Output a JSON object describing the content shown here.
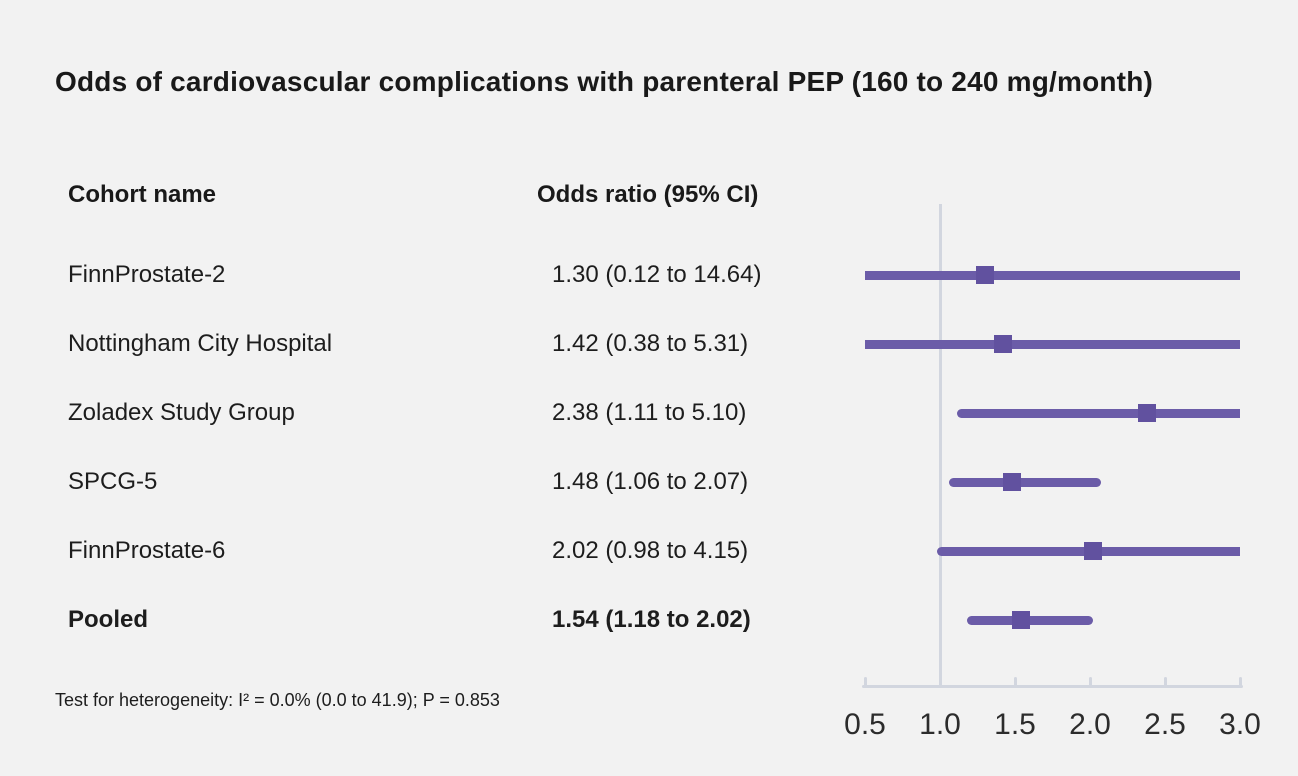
{
  "title": "Odds of cardiovascular complications with parenteral PEP (160 to 240 mg/month)",
  "columns": {
    "cohort_header": "Cohort name",
    "odds_header": "Odds ratio (95% CI)"
  },
  "footnote": "Test for heterogeneity: I² = 0.0% (0.0 to 41.9); P = 0.853",
  "colors": {
    "background": "#f2f2f2",
    "text": "#191919",
    "ci_line": "#6b5ca8",
    "marker": "#61519f",
    "axis": "#d2d6df",
    "axis_label": "#2c2c2c"
  },
  "chart_data": {
    "type": "forest",
    "title": "Odds of cardiovascular complications with parenteral PEP (160 to 240 mg/month)",
    "xlabel": "",
    "ylabel": "",
    "xlim": [
      0.5,
      3.0
    ],
    "reference_line": 1.0,
    "x_ticks": [
      0.5,
      1.0,
      1.5,
      2.0,
      2.5,
      3.0
    ],
    "x_tick_labels": [
      "0.5",
      "1.0",
      "1.5",
      "2.0",
      "2.5",
      "3.0"
    ],
    "grid": false,
    "legend": false,
    "rows": [
      {
        "label": "FinnProstate-2",
        "or_text": "1.30 (0.12 to 14.64)",
        "or": 1.3,
        "ci_low": 0.12,
        "ci_high": 14.64,
        "bold": false
      },
      {
        "label": "Nottingham City Hospital",
        "or_text": "1.42 (0.38 to 5.31)",
        "or": 1.42,
        "ci_low": 0.38,
        "ci_high": 5.31,
        "bold": false
      },
      {
        "label": "Zoladex Study Group",
        "or_text": "2.38 (1.11 to 5.10)",
        "or": 2.38,
        "ci_low": 1.11,
        "ci_high": 5.1,
        "bold": false
      },
      {
        "label": "SPCG-5",
        "or_text": "1.48 (1.06 to 2.07)",
        "or": 1.48,
        "ci_low": 1.06,
        "ci_high": 2.07,
        "bold": false
      },
      {
        "label": "FinnProstate-6",
        "or_text": "2.02 (0.98 to 4.15)",
        "or": 2.02,
        "ci_low": 0.98,
        "ci_high": 4.15,
        "bold": false
      },
      {
        "label": "Pooled",
        "or_text": "1.54 (1.18 to 2.02)",
        "or": 1.54,
        "ci_low": 1.18,
        "ci_high": 2.02,
        "bold": true
      }
    ]
  }
}
